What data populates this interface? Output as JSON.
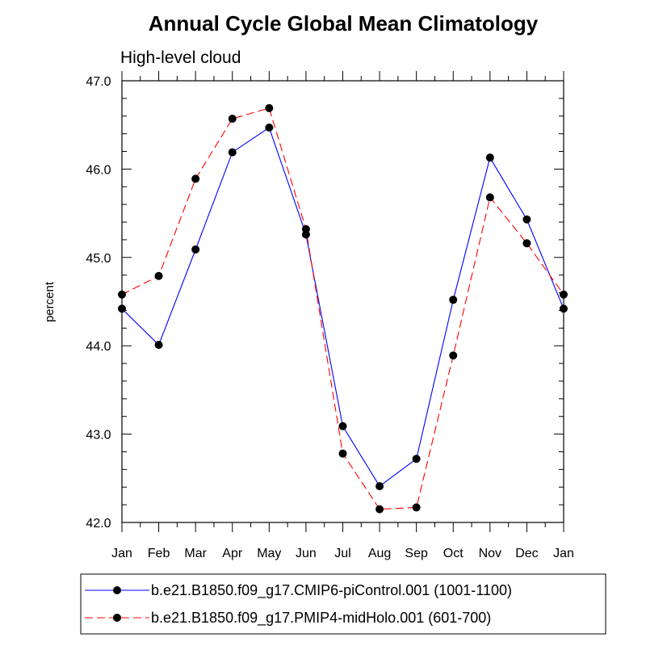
{
  "chart_data": {
    "type": "line",
    "title": "Annual Cycle Global Mean Climatology",
    "subtitle": "High-level cloud",
    "xlabel": "",
    "ylabel": "percent",
    "categories": [
      "Jan",
      "Feb",
      "Mar",
      "Apr",
      "May",
      "Jun",
      "Jul",
      "Aug",
      "Sep",
      "Oct",
      "Nov",
      "Dec",
      "Jan"
    ],
    "ylim": [
      42.0,
      47.0
    ],
    "yticks": [
      "42.0",
      "43.0",
      "44.0",
      "45.0",
      "46.0",
      "47.0"
    ],
    "grid": false,
    "legend_position": "bottom",
    "series": [
      {
        "name": "b.e21.B1850.f09_g17.CMIP6-piControl.001 (1001-1100)",
        "color": "#0000ff",
        "dash": "solid",
        "values": [
          44.42,
          44.01,
          45.09,
          46.19,
          46.47,
          45.26,
          43.09,
          42.41,
          42.72,
          44.52,
          46.13,
          45.43,
          44.42
        ]
      },
      {
        "name": "b.e21.B1850.f09_g17.PMIP4-midHolo.001 (601-700)",
        "color": "#ff0000",
        "dash": "dashed",
        "values": [
          44.58,
          44.79,
          45.89,
          46.57,
          46.69,
          45.32,
          42.78,
          42.15,
          42.17,
          43.89,
          45.68,
          45.16,
          44.58
        ]
      }
    ]
  }
}
